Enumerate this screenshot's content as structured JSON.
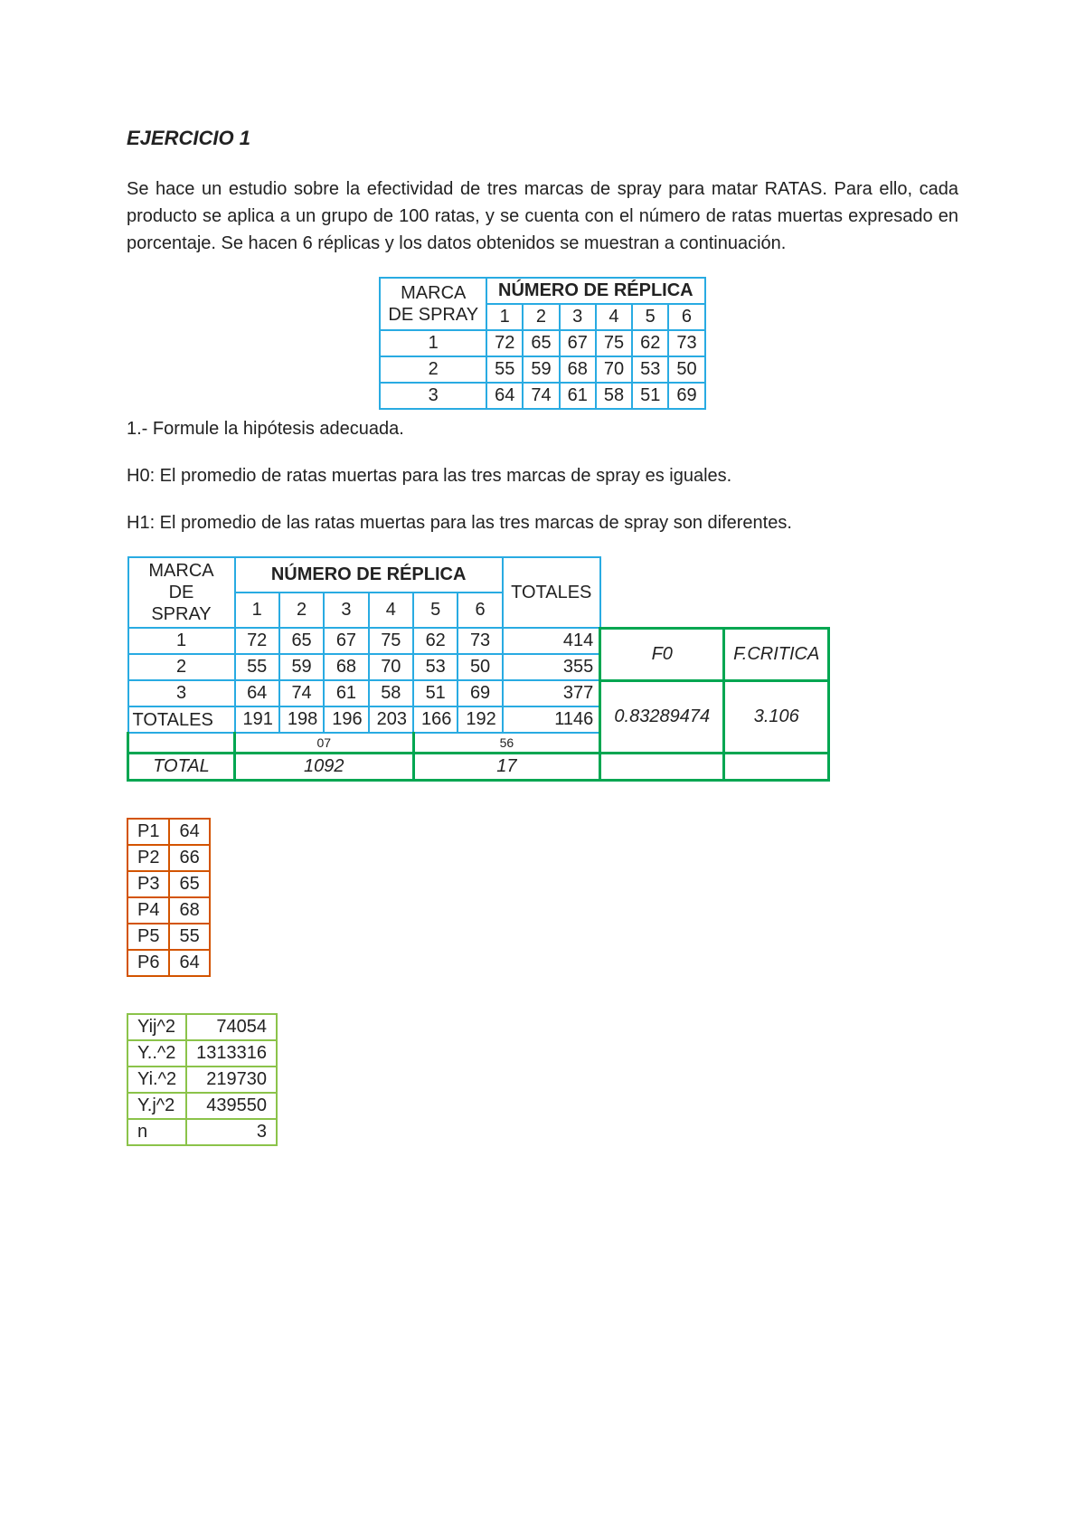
{
  "title": "EJERCICIO 1",
  "para1": "Se hace un estudio sobre la efectividad de tres marcas de spray para matar RATAS. Para ello, cada producto se aplica a un grupo de 100 ratas, y se cuenta con el número de ratas muertas expresado en porcentaje. Se hacen 6 réplicas y los datos obtenidos se muestran a continuación.",
  "table1": {
    "head_left_top": "MARCA",
    "head_left_bot": "DE SPRAY",
    "head_right": "NÚMERO DE RÉPLICA",
    "cols": [
      "1",
      "2",
      "3",
      "4",
      "5",
      "6"
    ],
    "rows": [
      {
        "label": "1",
        "vals": [
          "72",
          "65",
          "67",
          "75",
          "62",
          "73"
        ]
      },
      {
        "label": "2",
        "vals": [
          "55",
          "59",
          "68",
          "70",
          "53",
          "50"
        ]
      },
      {
        "label": "3",
        "vals": [
          "64",
          "74",
          "61",
          "58",
          "51",
          "69"
        ]
      }
    ]
  },
  "q1": "1.- Formule la hipótesis adecuada.",
  "h0": "H0: El promedio de ratas muertas  para las tres marcas de spray es iguales.",
  "h1": "H1: El promedio de las ratas muertas para las tres marcas de spray son diferentes.",
  "tmain": {
    "head_left_top": "MARCA DE",
    "head_left_bot": "SPRAY",
    "head_mid": "NÚMERO DE RÉPLICA",
    "head_tot": "TOTALES",
    "cols": [
      "1",
      "2",
      "3",
      "4",
      "5",
      "6"
    ],
    "rows": [
      {
        "label": "1",
        "vals": [
          "72",
          "65",
          "67",
          "75",
          "62",
          "73"
        ],
        "tot": "414"
      },
      {
        "label": "2",
        "vals": [
          "55",
          "59",
          "68",
          "70",
          "53",
          "50"
        ],
        "tot": "355"
      },
      {
        "label": "3",
        "vals": [
          "64",
          "74",
          "61",
          "58",
          "51",
          "69"
        ],
        "tot": "377"
      }
    ],
    "totrow_label": "TOTALES",
    "totrow_vals": [
      "191",
      "198",
      "196",
      "203",
      "166",
      "192"
    ],
    "totrow_tot": "1146",
    "ghost_a": "07",
    "ghost_b": "56",
    "f0_label": "F0",
    "fcrit_label": "F.CRITICA",
    "f0_val": "0.83289474",
    "fcrit_val": "3.106",
    "total_label": "TOTAL",
    "total_a": "1092",
    "total_b": "17"
  },
  "ptable": {
    "rows": [
      {
        "k": "P1",
        "v": "64"
      },
      {
        "k": "P2",
        "v": "66"
      },
      {
        "k": "P3",
        "v": "65"
      },
      {
        "k": "P4",
        "v": "68"
      },
      {
        "k": "P5",
        "v": "55"
      },
      {
        "k": "P6",
        "v": "64"
      }
    ]
  },
  "lime": {
    "rows": [
      {
        "k": "Yij^2",
        "v": "74054"
      },
      {
        "k": "Y..^2",
        "v": "1313316"
      },
      {
        "k": "Yi.^2",
        "v": "219730"
      },
      {
        "k": "Y.j^2",
        "v": "439550"
      },
      {
        "k": "n",
        "v": "3"
      }
    ]
  }
}
